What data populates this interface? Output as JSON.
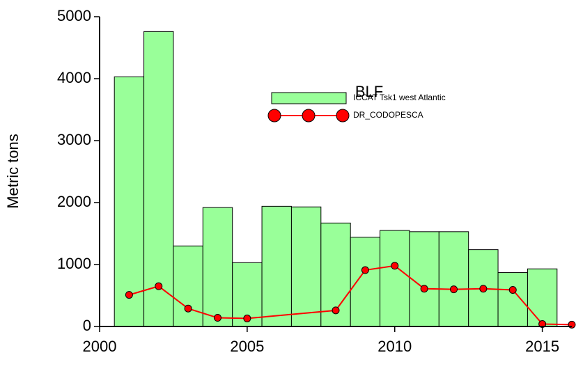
{
  "chart_data": {
    "type": "bar",
    "legend_title": "BLF",
    "y_label": "Metric tons",
    "xlim": [
      2000,
      2016
    ],
    "xticks": [
      2000,
      2005,
      2010,
      2015
    ],
    "ylim": [
      0,
      5000
    ],
    "yticks": [
      0,
      1000,
      2000,
      3000,
      4000,
      5000
    ],
    "series": [
      {
        "name": "ICCAT Tsk1 west Atlantic",
        "type": "bar",
        "color": "#99ff99",
        "x": [
          2001,
          2002,
          2003,
          2004,
          2005,
          2006,
          2007,
          2008,
          2009,
          2010,
          2011,
          2012,
          2013,
          2014,
          2015
        ],
        "values": [
          4030,
          4760,
          1300,
          1920,
          1030,
          1940,
          1930,
          1670,
          1440,
          1550,
          1530,
          1530,
          1240,
          870,
          930
        ]
      },
      {
        "name": "DR_CODOPESCA",
        "type": "line",
        "color": "#ff0000",
        "x": [
          2001,
          2002,
          2003,
          2004,
          2005,
          2008,
          2009,
          2010,
          2011,
          2012,
          2013,
          2014,
          2015,
          2016
        ],
        "values": [
          510,
          650,
          290,
          140,
          130,
          260,
          910,
          980,
          610,
          600,
          610,
          590,
          40,
          30
        ]
      }
    ]
  }
}
